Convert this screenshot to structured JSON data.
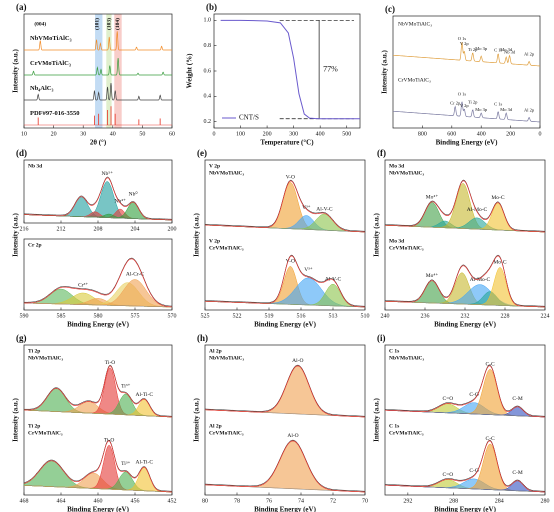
{
  "chart_data": [
    {
      "type": "xrd",
      "panel": "(a)",
      "xlabel": "2θ (°)",
      "ylabel": "Intensity (a.u.)",
      "xlim": [
        10,
        60
      ],
      "xticks": [
        10,
        20,
        30,
        40,
        50,
        60
      ],
      "highlights": [
        {
          "range": [
            34,
            36.5
          ],
          "color": "#a9cdef"
        },
        {
          "range": [
            37.8,
            39.6
          ],
          "color": "#d3e8b8"
        },
        {
          "range": [
            40.5,
            43
          ],
          "color": "#f5b8b2"
        }
      ],
      "annotations": [
        {
          "text": "(004)",
          "x": 15.5
        },
        {
          "text": "(101)",
          "x": 34.8
        },
        {
          "text": "(103)",
          "x": 38.8
        },
        {
          "text": "(104)",
          "x": 41.6
        }
      ],
      "series": [
        {
          "name": "NbVMoTiAlC₃",
          "color": "#f28c28",
          "peaks": [
            [
              15.5,
              0.5
            ],
            [
              34.5,
              0.55
            ],
            [
              35.8,
              0.35
            ],
            [
              38.8,
              0.7
            ],
            [
              41.5,
              1
            ],
            [
              48,
              0.15
            ],
            [
              56.5,
              0.2
            ]
          ]
        },
        {
          "name": "CrVMoTiAlC₃",
          "color": "#3a9d3f",
          "peaks": [
            [
              13.2,
              0.2
            ],
            [
              34.8,
              0.4
            ],
            [
              36,
              0.3
            ],
            [
              39,
              0.5
            ],
            [
              41.8,
              0.9
            ],
            [
              48.5,
              0.1
            ],
            [
              57,
              0.15
            ]
          ]
        },
        {
          "name": "Nb₄AlC₃",
          "color": "#444444",
          "peaks": [
            [
              14.8,
              0.3
            ],
            [
              33.8,
              0.5
            ],
            [
              35.2,
              0.4
            ],
            [
              38.2,
              0.7
            ],
            [
              39.4,
              0.9
            ],
            [
              40.8,
              0.5
            ],
            [
              48.8,
              0.2
            ],
            [
              56,
              0.25
            ]
          ]
        },
        {
          "name": "PDF#97-016-3550",
          "color": "#e8473a",
          "style": "sticks",
          "peaks": [
            [
              14.8,
              0.4
            ],
            [
              33.8,
              0.5
            ],
            [
              35.2,
              0.6
            ],
            [
              38.2,
              0.8
            ],
            [
              39.4,
              1
            ],
            [
              40.8,
              0.6
            ],
            [
              48.8,
              0.3
            ],
            [
              56,
              0.35
            ]
          ]
        }
      ]
    },
    {
      "type": "line",
      "panel": "(b)",
      "xlabel": "Temperature (°C)",
      "ylabel": "Weight (%)",
      "xlim": [
        0,
        550
      ],
      "xticks": [
        0,
        100,
        200,
        300,
        400,
        500
      ],
      "ylim": [
        0.15,
        1.05
      ],
      "yticks": [
        0.2,
        0.4,
        0.6,
        0.8,
        {
          "value": 1,
          "label": "1.0"
        }
      ],
      "series": [
        {
          "name": "CNT/S",
          "color": "#6a5acd",
          "x": [
            25,
            100,
            200,
            250,
            280,
            300,
            320,
            340,
            360,
            380,
            400,
            500,
            550
          ],
          "values": [
            1.0,
            1.0,
            0.995,
            0.98,
            0.9,
            0.7,
            0.42,
            0.26,
            0.228,
            0.225,
            0.223,
            0.223,
            0.223
          ]
        }
      ],
      "reference_lines": [
        1.0,
        0.223
      ],
      "annotation": "77%"
    },
    {
      "type": "survey",
      "panel": "(c)",
      "xlabel": "Binding Energy (eV)",
      "ylabel": "Intensity (a.u.)",
      "xlim": [
        1000,
        0
      ],
      "xticks": [
        800,
        600,
        400,
        200,
        0
      ],
      "spectra": [
        {
          "sample": "NbVMoTiAlC₃",
          "color": "#e0a040",
          "peaks": [
            [
              "O 1s",
              531,
              1.0
            ],
            [
              "V 2p",
              515,
              0.5
            ],
            [
              "Ti 2p",
              458,
              0.45
            ],
            [
              "Mo 3p",
              400,
              0.3
            ],
            [
              "C 1s",
              284.8,
              0.5
            ],
            [
              "Mo 3d",
              230,
              0.35
            ],
            [
              "Nb 3d",
              207,
              0.45
            ],
            [
              "Al 2p",
              74,
              0.2
            ]
          ]
        },
        {
          "sample": "CrVMoTiAlC₃",
          "color": "#7a7aa0",
          "peaks": [
            [
              "Cr 2p",
              577,
              0.5
            ],
            [
              "O 1s",
              531,
              0.8
            ],
            [
              "V 2p",
              515,
              0.4
            ],
            [
              "Ti 2p",
              458,
              0.4
            ],
            [
              "Mo 3p",
              400,
              0.25
            ],
            [
              "C 1s",
              284.8,
              0.4
            ],
            [
              "Mo 3d",
              230,
              0.35
            ],
            [
              "Al 2p",
              74,
              0.2
            ]
          ]
        }
      ]
    },
    {
      "type": "xps",
      "panel": "(d)",
      "xlabel": "Binding Energy (eV)",
      "ylabel": "Intensity (a.u.)",
      "spectra": [
        {
          "title": "Nb 3d",
          "xlim": [
            216,
            200
          ],
          "xticks": [
            216,
            212,
            208,
            204,
            200
          ],
          "peaks": [
            {
              "c": 209.8,
              "h": 0.55,
              "w": 0.7,
              "color": "#1e9e9e"
            },
            {
              "c": 207.0,
              "h": 1.0,
              "w": 0.7,
              "color": "#1e9e9e",
              "label": "Nb⁵⁺"
            },
            {
              "c": 208.3,
              "h": 0.15,
              "w": 0.5,
              "color": "#e53935"
            },
            {
              "c": 205.6,
              "h": 0.25,
              "w": 0.5,
              "color": "#e53935",
              "label": "Nb⁴⁺"
            },
            {
              "c": 206.8,
              "h": 0.1,
              "w": 0.5,
              "color": "#2e9e3a"
            },
            {
              "c": 204.2,
              "h": 0.45,
              "w": 0.6,
              "color": "#2e9e3a",
              "label": "Nb⁰"
            }
          ]
        },
        {
          "title": "Cr 2p",
          "xlim": [
            590,
            570
          ],
          "xticks": [
            590,
            585,
            580,
            575,
            570
          ],
          "peaks": [
            {
              "c": 585,
              "h": 0.45,
              "w": 1.5,
              "color": "#5cb85c"
            },
            {
              "c": 582,
              "h": 0.35,
              "w": 1.5,
              "color": "#d9c93a",
              "label": "Cr³⁺"
            },
            {
              "c": 580,
              "h": 0.2,
              "w": 1.2,
              "color": "#f0a050"
            },
            {
              "c": 576,
              "h": 0.7,
              "w": 1.5,
              "color": "#e8d060"
            },
            {
              "c": 575,
              "h": 0.8,
              "w": 1.5,
              "color": "#f0a050",
              "label": "Al-Cr-C"
            }
          ]
        }
      ]
    },
    {
      "type": "xps",
      "panel": "(e)",
      "xlabel": "Binding Energy (eV)",
      "ylabel": "Intensity (a.u.)",
      "xlim": [
        525,
        510
      ],
      "xticks": [
        525,
        522,
        519,
        516,
        513,
        510
      ],
      "spectra": [
        {
          "title": "V 2p",
          "sample": "NbVMoTiAlC₃",
          "peaks": [
            {
              "c": 517,
              "h": 1,
              "w": 0.7,
              "color": "#f0a030",
              "label": "V-O"
            },
            {
              "c": 515.5,
              "h": 0.3,
              "w": 0.7,
              "color": "#42a5f5",
              "label": "V³⁺"
            },
            {
              "c": 513.8,
              "h": 0.35,
              "w": 0.8,
              "color": "#8bc34a",
              "label": "Al-V-C"
            }
          ]
        },
        {
          "title": "V 2p",
          "sample": "CrVMoTiAlC₃",
          "peaks": [
            {
              "c": 517,
              "h": 0.7,
              "w": 0.6,
              "color": "#f0a030",
              "label": "V-O"
            },
            {
              "c": 515.3,
              "h": 0.5,
              "w": 1.2,
              "color": "#42a5f5",
              "label": "V³⁺"
            },
            {
              "c": 513,
              "h": 0.4,
              "w": 0.7,
              "color": "#8bc34a",
              "label": "Al-V-C"
            }
          ]
        }
      ]
    },
    {
      "type": "xps",
      "panel": "(f)",
      "xlabel": "Binding Energy (eV)",
      "ylabel": "Intensity (a.u.)",
      "xlim": [
        240,
        224
      ],
      "xticks": [
        240,
        236,
        232,
        228,
        224
      ],
      "spectra": [
        {
          "title": "Mo 3d",
          "sample": "NbVMoTiAlC₃",
          "peaks": [
            {
              "c": 235.3,
              "h": 0.55,
              "w": 0.7,
              "color": "#43a047",
              "label": "Mo⁴⁺"
            },
            {
              "c": 234,
              "h": 0.15,
              "w": 0.6,
              "color": "#26a69a"
            },
            {
              "c": 232.2,
              "h": 1,
              "w": 0.7,
              "color": "#c6b82d"
            },
            {
              "c": 230.8,
              "h": 0.25,
              "w": 0.8,
              "color": "#26a69a",
              "label": "Al-Mo-C"
            },
            {
              "c": 228.7,
              "h": 0.6,
              "w": 0.6,
              "color": "#f2c230",
              "label": "Mo-C"
            }
          ]
        },
        {
          "title": "Mo 3d",
          "sample": "CrVMoTiAlC₃",
          "peaks": [
            {
              "c": 235.3,
              "h": 0.5,
              "w": 0.7,
              "color": "#43a047",
              "label": "Mo⁴⁺"
            },
            {
              "c": 232.3,
              "h": 0.7,
              "w": 0.7,
              "color": "#c6b82d"
            },
            {
              "c": 230.5,
              "h": 0.45,
              "w": 1.2,
              "color": "#42a5f5",
              "label": "Al-Mo-C"
            },
            {
              "c": 229.5,
              "h": 0.3,
              "w": 0.7,
              "color": "#26a69a"
            },
            {
              "c": 228.5,
              "h": 0.85,
              "w": 0.6,
              "color": "#f2c230",
              "label": "Mo-C"
            }
          ]
        }
      ]
    },
    {
      "type": "xps",
      "panel": "(g)",
      "xlabel": "Binding Energy (eV)",
      "ylabel": "Intensity (a.u.)",
      "xlim": [
        468,
        452
      ],
      "xticks": [
        468,
        464,
        460,
        456,
        452
      ],
      "spectra": [
        {
          "title": "Ti 2p",
          "sample": "NbVMoTiAlC₃",
          "peaks": [
            {
              "c": 464.5,
              "h": 0.5,
              "w": 1,
              "color": "#4caf50"
            },
            {
              "c": 461,
              "h": 0.25,
              "w": 1,
              "color": "#f0a050"
            },
            {
              "c": 458.7,
              "h": 1,
              "w": 0.6,
              "color": "#e53935",
              "label": "Ti-O"
            },
            {
              "c": 457,
              "h": 0.45,
              "w": 0.7,
              "color": "#4caf50",
              "label": "Ti³⁺"
            },
            {
              "c": 455,
              "h": 0.35,
              "w": 0.6,
              "color": "#f2c230",
              "label": "Al-Ti-C"
            }
          ]
        },
        {
          "title": "Ti 2p",
          "sample": "CrVMoTiAlC₃",
          "peaks": [
            {
              "c": 465,
              "h": 0.5,
              "w": 1.3,
              "color": "#4caf50"
            },
            {
              "c": 460.5,
              "h": 0.3,
              "w": 1,
              "color": "#f0a050"
            },
            {
              "c": 458.8,
              "h": 0.85,
              "w": 0.6,
              "color": "#e53935",
              "label": "Ti-O"
            },
            {
              "c": 457,
              "h": 0.35,
              "w": 0.7,
              "color": "#4caf50",
              "label": "Ti³⁺"
            },
            {
              "c": 455,
              "h": 0.45,
              "w": 0.6,
              "color": "#f2c230",
              "label": "Al-Ti-C"
            }
          ]
        }
      ]
    },
    {
      "type": "xps",
      "panel": "(h)",
      "xlabel": "Binding Energy (eV)",
      "ylabel": "Intensity (a.u.)",
      "xlim": [
        80,
        70
      ],
      "xticks": [
        80,
        78,
        76,
        74,
        72,
        70
      ],
      "spectra": [
        {
          "title": "Al 2p",
          "sample": "NbVMoTiAlC₃",
          "peaks": [
            {
              "c": 74.2,
              "h": 1,
              "w": 0.7,
              "color": "#f0a050",
              "label": "Al-O"
            }
          ]
        },
        {
          "title": "Al 2p",
          "sample": "CrVMoTiAlC₃",
          "peaks": [
            {
              "c": 74.5,
              "h": 1,
              "w": 0.8,
              "color": "#f0a050",
              "label": "Al-O"
            }
          ]
        }
      ]
    },
    {
      "type": "xps",
      "panel": "(i)",
      "xlabel": "Binding Energy (eV)",
      "ylabel": "Intensity (a.u.)",
      "xlim": [
        294,
        280
      ],
      "xticks": [
        292,
        288,
        284,
        280
      ],
      "spectra": [
        {
          "title": "C 1s",
          "sample": "NbVMoTiAlC₃",
          "peaks": [
            {
              "c": 288.5,
              "h": 0.2,
              "w": 0.8,
              "color": "#c0ca33",
              "label": "C=O"
            },
            {
              "c": 286.2,
              "h": 0.25,
              "w": 0.9,
              "color": "#42a5f5",
              "label": "C-O"
            },
            {
              "c": 284.8,
              "h": 1,
              "w": 0.6,
              "color": "#f0a030",
              "label": "C-C"
            },
            {
              "c": 282.4,
              "h": 0.2,
              "w": 0.5,
              "color": "#3050c0",
              "label": "C-M"
            }
          ]
        },
        {
          "title": "C 1s",
          "sample": "CrVMoTiAlC₃",
          "peaks": [
            {
              "c": 288.5,
              "h": 0.18,
              "w": 0.8,
              "color": "#c0ca33",
              "label": "C=O"
            },
            {
              "c": 286.2,
              "h": 0.22,
              "w": 0.9,
              "color": "#42a5f5",
              "label": "C-O"
            },
            {
              "c": 284.8,
              "h": 1,
              "w": 0.6,
              "color": "#f0a030",
              "label": "C-C"
            },
            {
              "c": 282.4,
              "h": 0.22,
              "w": 0.5,
              "color": "#3050c0",
              "label": "C-M"
            }
          ]
        }
      ]
    }
  ]
}
